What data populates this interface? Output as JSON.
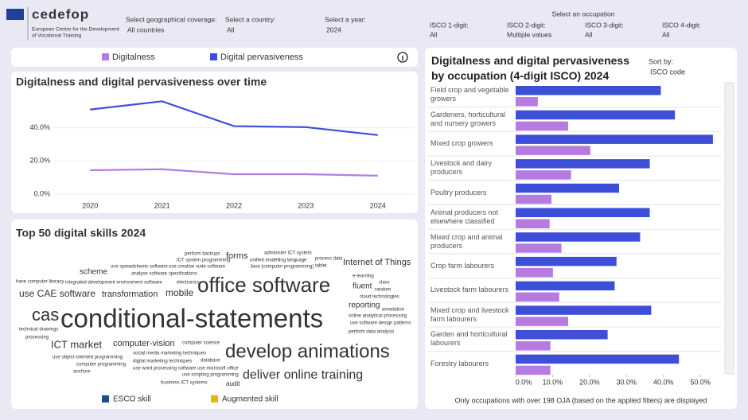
{
  "header": {
    "org": "cedefop",
    "org_full_1": "European Centre for the Development",
    "org_full_2": "of Vocational Training"
  },
  "filters": [
    {
      "label": "Select geographical coverage:",
      "value": "All countries"
    },
    {
      "label": "Select a country:",
      "value": "All"
    },
    {
      "label": "Select a year:",
      "value": "2024"
    }
  ],
  "occupation": {
    "title": "Select an occupation",
    "filters": [
      {
        "label": "ISCO 1-digit:",
        "value": "All"
      },
      {
        "label": "ISCO 2-digit:",
        "value": "Multiple values"
      },
      {
        "label": "ISCO 3-digit:",
        "value": "All"
      },
      {
        "label": "ISCO 4-digit:",
        "value": "All"
      }
    ]
  },
  "chart_data": [
    {
      "type": "line",
      "title": "Digitalness and digital pervasiveness over time",
      "x": [
        2020,
        2021,
        2022,
        2023,
        2024
      ],
      "xlim": [
        2019.5,
        2024.5
      ],
      "ylim": [
        0,
        60
      ],
      "yticks": [
        {
          "value": 0,
          "label": "0.0%"
        },
        {
          "value": 20,
          "label": "20.0%"
        },
        {
          "value": 40,
          "label": "40.0%"
        }
      ],
      "grid": true,
      "series": [
        {
          "name": "Digitalness",
          "color": "#b57be0",
          "values": [
            14.4,
            15,
            12,
            12,
            11.1
          ]
        },
        {
          "name": "Digital pervasiveness",
          "color": "#3d4ed8",
          "values": [
            51,
            56,
            41,
            40.4,
            35.6
          ]
        }
      ]
    },
    {
      "type": "bar",
      "orientation": "horizontal",
      "title": "Digitalness and digital pervasiveness by occupation (4-digit ISCO) 2024",
      "sort_label": "Sort by:",
      "sort_value": "ISCO code",
      "note": "Only occupations with over 198 OJA (based on the applied filters) are displayed",
      "categories": [
        "Field crop and vegetable growers",
        "Gardeners, horticultural and nursery growers",
        "Mixed crop growers",
        "Livestock and dairy producers",
        "Poultry producers",
        "Animal producers not elsewhere classified",
        "Mixed crop and animal producers",
        "Crop farm labourers",
        "Livestock farm labourers",
        "Mixed crop and livestock farm labourers",
        "Garden and horticultural labourers",
        "Forestry labourers"
      ],
      "xlim": [
        0,
        56
      ],
      "xticks": [
        {
          "value": 0,
          "label": "0.0%"
        },
        {
          "value": 10,
          "label": "10.0%"
        },
        {
          "value": 20,
          "label": "20.0%"
        },
        {
          "value": 30,
          "label": "30.0%"
        },
        {
          "value": 40,
          "label": "40.0%"
        },
        {
          "value": 50,
          "label": "50.0%"
        }
      ],
      "series": [
        {
          "name": "Digitalness",
          "color": "#b57be0",
          "values": [
            6.0,
            14.2,
            20.2,
            15.0,
            9.7,
            9.2,
            12.4,
            10.1,
            11.8,
            14.2,
            9.4,
            9.4
          ]
        },
        {
          "name": "Digital pervasiveness",
          "color": "#3d4ed8",
          "values": [
            39.3,
            43.1,
            53.4,
            36.3,
            28.0,
            36.3,
            33.7,
            27.3,
            26.8,
            36.7,
            24.9,
            44.2
          ]
        }
      ]
    }
  ],
  "word_cloud": {
    "title": "Top 50 digital skills 2024",
    "groups": [
      {
        "name": "ESCO skill",
        "color": "#1a4e8c",
        "words": [
          "perform backups",
          "administer ICT system",
          "ICT system programming",
          "unified modelling language",
          "process data",
          "use spreadsheets software",
          "use creative suite software",
          "Java (computer programming)",
          "Internet of Things",
          "analyse software specifications",
          "e-learning",
          "have computer literacy",
          "integrated development environment software",
          "electronics",
          "office software",
          "use CAE software",
          "cloud technologies",
          "online analytical processing",
          "use software design patterns",
          "perform data analysis",
          "technical drawings",
          "ICT market",
          "computer science",
          "social media marketing techniques",
          "digital marketing techniques",
          "database",
          "use object-oriented programming",
          "computer programming",
          "use word processing software",
          "use microsoft office",
          "develop animations",
          "use scripting programming",
          "deliver online training",
          "business ICT systems"
        ]
      },
      {
        "name": "Augmented skill",
        "color": "#f0b400",
        "words": [
          "forms",
          "tablet",
          "scheme",
          "fluent",
          "class",
          "random",
          "transformation",
          "mobile",
          "cas",
          "conditional-statements",
          "reporting",
          "annotation",
          "processing",
          "computer-vision",
          "anchore",
          "audit"
        ]
      }
    ]
  }
}
